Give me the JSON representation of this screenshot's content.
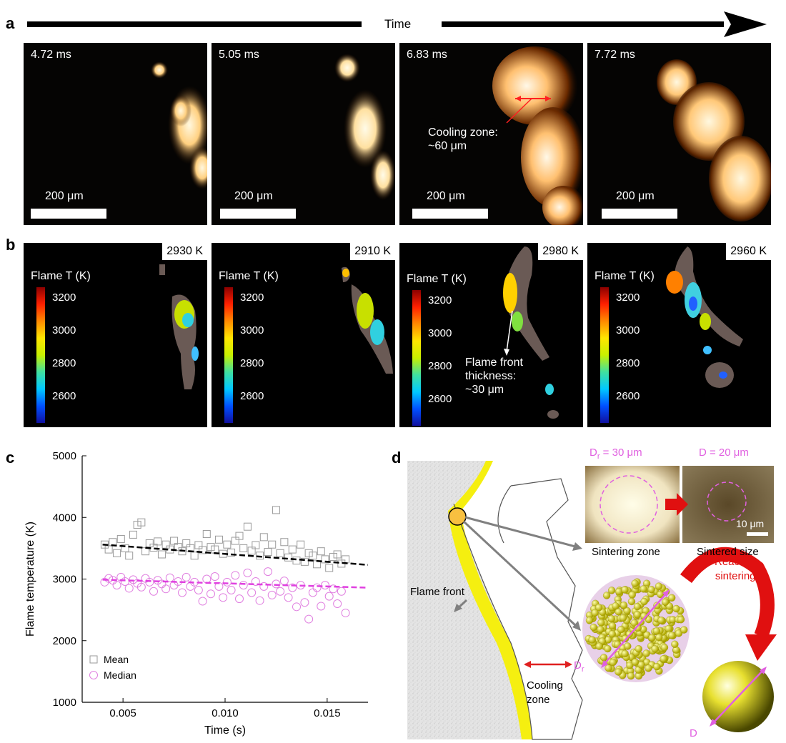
{
  "panel_a": {
    "letter": "a",
    "time_label": "Time",
    "frames": [
      {
        "time": "4.72 ms",
        "scale": "200 μm"
      },
      {
        "time": "5.05 ms",
        "scale": "200 μm"
      },
      {
        "time": "6.83 ms",
        "scale": "200 μm"
      },
      {
        "time": "7.72 ms",
        "scale": "200 μm"
      }
    ],
    "annotation": "Cooling zone:\n~60 μm"
  },
  "panel_b": {
    "letter": "b",
    "frames": [
      {
        "temp": "2930 K"
      },
      {
        "temp": "2910 K"
      },
      {
        "temp": "2980 K"
      },
      {
        "temp": "2960 K"
      }
    ],
    "colorbar_label": "Flame T (K)",
    "colorbar_ticks": [
      "3200",
      "3000",
      "2800",
      "2600"
    ],
    "annotation": "Flame front\nthickness:\n~30 μm"
  },
  "panel_c": {
    "letter": "c"
  },
  "chart_data": {
    "type": "scatter",
    "xlabel": "Time (s)",
    "ylabel": "Flame temperature (K)",
    "xlim": [
      0.003,
      0.017
    ],
    "ylim": [
      1000,
      5000
    ],
    "xticks": [
      "0.005",
      "0.010",
      "0.015"
    ],
    "yticks": [
      "1000",
      "2000",
      "3000",
      "4000",
      "5000"
    ],
    "legend_position": "bottom-left",
    "series": [
      {
        "name": "Mean",
        "marker": "square",
        "color": "#9a9a9a",
        "trend": {
          "x": [
            0.004,
            0.017
          ],
          "y": [
            3560,
            3230
          ],
          "color": "#000000"
        },
        "points": [
          [
            0.0041,
            3560
          ],
          [
            0.0043,
            3480
          ],
          [
            0.0045,
            3600
          ],
          [
            0.0047,
            3420
          ],
          [
            0.0049,
            3650
          ],
          [
            0.0051,
            3500
          ],
          [
            0.0053,
            3380
          ],
          [
            0.0055,
            3720
          ],
          [
            0.0057,
            3880
          ],
          [
            0.0059,
            3920
          ],
          [
            0.0061,
            3450
          ],
          [
            0.0063,
            3580
          ],
          [
            0.0065,
            3510
          ],
          [
            0.0067,
            3610
          ],
          [
            0.0069,
            3400
          ],
          [
            0.0071,
            3560
          ],
          [
            0.0073,
            3480
          ],
          [
            0.0075,
            3620
          ],
          [
            0.0077,
            3520
          ],
          [
            0.0079,
            3450
          ],
          [
            0.0081,
            3580
          ],
          [
            0.0083,
            3500
          ],
          [
            0.0085,
            3380
          ],
          [
            0.0087,
            3550
          ],
          [
            0.0089,
            3470
          ],
          [
            0.0091,
            3730
          ],
          [
            0.0093,
            3520
          ],
          [
            0.0095,
            3480
          ],
          [
            0.0097,
            3640
          ],
          [
            0.0099,
            3410
          ],
          [
            0.0101,
            3560
          ],
          [
            0.0103,
            3430
          ],
          [
            0.0105,
            3620
          ],
          [
            0.0107,
            3700
          ],
          [
            0.0109,
            3500
          ],
          [
            0.0111,
            3850
          ],
          [
            0.0113,
            3460
          ],
          [
            0.0115,
            3550
          ],
          [
            0.0117,
            3380
          ],
          [
            0.0119,
            3680
          ],
          [
            0.0121,
            3440
          ],
          [
            0.0123,
            3560
          ],
          [
            0.0125,
            4120
          ],
          [
            0.0127,
            3420
          ],
          [
            0.0129,
            3600
          ],
          [
            0.0131,
            3350
          ],
          [
            0.0133,
            3480
          ],
          [
            0.0135,
            3300
          ],
          [
            0.0137,
            3560
          ],
          [
            0.0139,
            3280
          ],
          [
            0.0141,
            3420
          ],
          [
            0.0143,
            3380
          ],
          [
            0.0145,
            3240
          ],
          [
            0.0147,
            3450
          ],
          [
            0.0149,
            3320
          ],
          [
            0.0151,
            3180
          ],
          [
            0.0153,
            3360
          ],
          [
            0.0155,
            3400
          ],
          [
            0.0157,
            3250
          ],
          [
            0.0159,
            3320
          ]
        ]
      },
      {
        "name": "Median",
        "marker": "circle",
        "color": "#e080e0",
        "trend": {
          "x": [
            0.004,
            0.017
          ],
          "y": [
            2990,
            2860
          ],
          "color": "#e040e0"
        },
        "points": [
          [
            0.0041,
            2950
          ],
          [
            0.0043,
            3010
          ],
          [
            0.0045,
            2980
          ],
          [
            0.0047,
            2900
          ],
          [
            0.0049,
            3030
          ],
          [
            0.0051,
            2960
          ],
          [
            0.0053,
            2850
          ],
          [
            0.0055,
            2990
          ],
          [
            0.0057,
            2930
          ],
          [
            0.0059,
            2870
          ],
          [
            0.0061,
            3010
          ],
          [
            0.0063,
            2950
          ],
          [
            0.0065,
            2800
          ],
          [
            0.0067,
            2980
          ],
          [
            0.0069,
            2920
          ],
          [
            0.0071,
            2840
          ],
          [
            0.0073,
            3020
          ],
          [
            0.0075,
            2900
          ],
          [
            0.0077,
            2960
          ],
          [
            0.0079,
            2780
          ],
          [
            0.0081,
            3030
          ],
          [
            0.0083,
            2880
          ],
          [
            0.0085,
            2950
          ],
          [
            0.0087,
            2820
          ],
          [
            0.0089,
            2640
          ],
          [
            0.0091,
            3000
          ],
          [
            0.0093,
            2760
          ],
          [
            0.0095,
            3040
          ],
          [
            0.0097,
            2880
          ],
          [
            0.0099,
            2700
          ],
          [
            0.0101,
            2950
          ],
          [
            0.0103,
            2820
          ],
          [
            0.0105,
            3060
          ],
          [
            0.0107,
            2680
          ],
          [
            0.0109,
            2900
          ],
          [
            0.0111,
            3100
          ],
          [
            0.0113,
            2780
          ],
          [
            0.0115,
            2960
          ],
          [
            0.0117,
            2650
          ],
          [
            0.0119,
            2880
          ],
          [
            0.0121,
            3120
          ],
          [
            0.0123,
            2740
          ],
          [
            0.0125,
            2920
          ],
          [
            0.0127,
            2800
          ],
          [
            0.0129,
            2970
          ],
          [
            0.0131,
            2700
          ],
          [
            0.0133,
            2860
          ],
          [
            0.0135,
            2550
          ],
          [
            0.0137,
            2900
          ],
          [
            0.0139,
            2620
          ],
          [
            0.0141,
            2350
          ],
          [
            0.0143,
            2780
          ],
          [
            0.0145,
            2860
          ],
          [
            0.0147,
            2560
          ],
          [
            0.0149,
            2900
          ],
          [
            0.0151,
            2720
          ],
          [
            0.0153,
            2840
          ],
          [
            0.0155,
            2600
          ],
          [
            0.0157,
            2800
          ],
          [
            0.0159,
            2450
          ]
        ]
      }
    ]
  },
  "panel_d": {
    "letter": "d",
    "dr_label": "D",
    "dr_sub": "r",
    "dr_label_top": "D",
    "dr_top_sub": "r",
    "dr_top_value": " = 30 μm",
    "d_top_label": "D = 20 μm",
    "scale": "10 μm",
    "caption_sintering": "Sintering zone",
    "caption_sintered": "Sintered size",
    "flame_front": "Flame front",
    "cooling_zone": "Cooling\nzone",
    "reactive": "Reactive\nsintering",
    "d_label": "D"
  }
}
